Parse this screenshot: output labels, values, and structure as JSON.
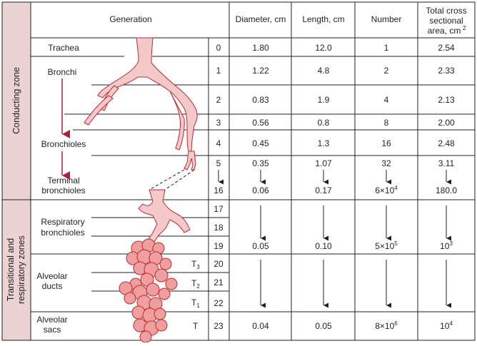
{
  "headers": {
    "generation": "Generation",
    "diameter": "Diameter, cm",
    "length": "Length, cm",
    "number": "Number",
    "area_line1": "Total cross",
    "area_line2": "sectional",
    "area_line3": "area, cm",
    "area_sup": "2"
  },
  "zones": {
    "conducting": "Conducting zone",
    "transitional_line1": "Transitional and",
    "transitional_line2": "respiratory zones"
  },
  "airway_labels": {
    "trachea": "Trachea",
    "bronchi": "Bronchi",
    "bronchioles": "Bronchioles",
    "terminal_line1": "Terminal",
    "terminal_line2": "bronchioles",
    "respiratory_line1": "Respiratory",
    "respiratory_line2": "bronchioles",
    "alveolar_ducts_line1": "Alveolar",
    "alveolar_ducts_line2": "ducts",
    "alveolar_sacs_line1": "Alveolar",
    "alveolar_sacs_line2": "sacs"
  },
  "t_labels": {
    "t3": "T",
    "t3_sub": "3",
    "t2": "T",
    "t2_sub": "2",
    "t1": "T",
    "t1_sub": "1",
    "t": "T"
  },
  "rows": [
    {
      "gen": "0",
      "diameter": "1.80",
      "length": "12.0",
      "number": "1",
      "area": "2.54"
    },
    {
      "gen": "1",
      "diameter": "1.22",
      "length": "4.8",
      "number": "2",
      "area": "2.33"
    },
    {
      "gen": "2",
      "diameter": "0.83",
      "length": "1.9",
      "number": "4",
      "area": "2.13"
    },
    {
      "gen": "3",
      "diameter": "0.56",
      "length": "0.8",
      "number": "8",
      "area": "2.00"
    },
    {
      "gen": "4",
      "diameter": "0.45",
      "length": "1.3",
      "number": "16",
      "area": "2.48"
    },
    {
      "gen": "5",
      "diameter": "0.35",
      "length": "1.07",
      "number": "32",
      "area": "3.11"
    },
    {
      "gen": "16",
      "diameter": "0.06",
      "length": "0.17",
      "number_base": "6×10",
      "number_exp": "4",
      "area": "180.0"
    },
    {
      "gen": "17"
    },
    {
      "gen": "18"
    },
    {
      "gen": "19",
      "diameter": "0.05",
      "length": "0.10",
      "number_base": "5×10",
      "number_exp": "5",
      "area_base": "10",
      "area_exp": "3"
    },
    {
      "gen": "20"
    },
    {
      "gen": "21"
    },
    {
      "gen": "22"
    },
    {
      "gen": "23",
      "diameter": "0.04",
      "length": "0.05",
      "number_base": "8×10",
      "number_exp": "6",
      "area_base": "10",
      "area_exp": "4"
    }
  ],
  "colors": {
    "zone_fill": "#ebd3d3",
    "airway_fill": "#f4c9c9",
    "alveoli_fill": "#ef9f9f",
    "outline": "#c0282d",
    "arrow_red": "#b21e35",
    "grid": "#231f20"
  }
}
